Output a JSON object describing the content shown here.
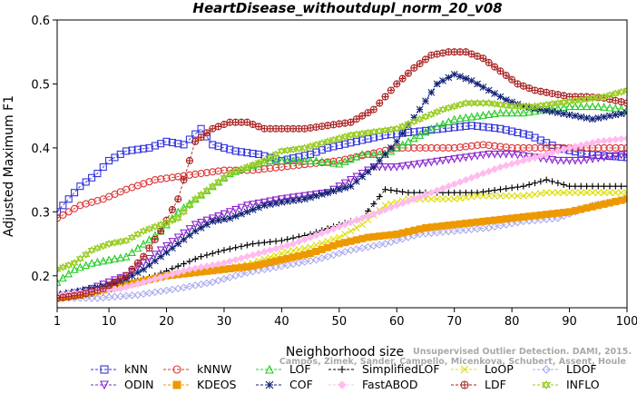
{
  "chart_data": {
    "type": "line",
    "title": "HeartDisease_withoutdupl_norm_20_v08",
    "xlabel": "Neighborhood size",
    "ylabel": "Adjusted Maximum F1",
    "xlim": [
      1,
      100
    ],
    "ylim": [
      0.15,
      0.6
    ],
    "xticks": [
      "1",
      "10",
      "20",
      "30",
      "40",
      "50",
      "60",
      "70",
      "80",
      "90",
      "100"
    ],
    "yticks": [
      "0.2",
      "0.3",
      "0.4",
      "0.5",
      "0.6"
    ],
    "credit": "Campos, Zimek, Sander, Campello, Micenkova, Schubert, Assent, Houle Unsupervised Outlier Detection. DAMI, 2015.",
    "credit_line1": "Unsupervised Outlier Detection. DAMI, 2015.",
    "credit_line2": "Campos, Zimek, Sander, Campello, Micenkova, Schubert, Assent, Houle",
    "legend_position": "bottom",
    "series": [
      {
        "name": "kNN",
        "color": "#3333dd",
        "marker": "square",
        "points": [
          [
            1,
            0.3
          ],
          [
            5,
            0.34
          ],
          [
            8,
            0.36
          ],
          [
            10,
            0.38
          ],
          [
            13,
            0.395
          ],
          [
            17,
            0.4
          ],
          [
            20,
            0.41
          ],
          [
            23,
            0.405
          ],
          [
            26,
            0.43
          ],
          [
            28,
            0.405
          ],
          [
            32,
            0.395
          ],
          [
            36,
            0.39
          ],
          [
            40,
            0.38
          ],
          [
            45,
            0.39
          ],
          [
            48,
            0.4
          ],
          [
            53,
            0.41
          ],
          [
            58,
            0.42
          ],
          [
            63,
            0.425
          ],
          [
            68,
            0.43
          ],
          [
            73,
            0.435
          ],
          [
            78,
            0.43
          ],
          [
            83,
            0.42
          ],
          [
            88,
            0.4
          ],
          [
            93,
            0.39
          ],
          [
            100,
            0.385
          ]
        ]
      },
      {
        "name": "kNNW",
        "color": "#dd3333",
        "marker": "circle",
        "points": [
          [
            1,
            0.29
          ],
          [
            5,
            0.31
          ],
          [
            9,
            0.32
          ],
          [
            13,
            0.335
          ],
          [
            18,
            0.35
          ],
          [
            22,
            0.355
          ],
          [
            26,
            0.36
          ],
          [
            30,
            0.365
          ],
          [
            35,
            0.365
          ],
          [
            40,
            0.37
          ],
          [
            45,
            0.375
          ],
          [
            50,
            0.38
          ],
          [
            55,
            0.39
          ],
          [
            60,
            0.4
          ],
          [
            65,
            0.4
          ],
          [
            70,
            0.4
          ],
          [
            75,
            0.405
          ],
          [
            80,
            0.4
          ],
          [
            85,
            0.4
          ],
          [
            90,
            0.4
          ],
          [
            100,
            0.4
          ]
        ]
      },
      {
        "name": "LOF",
        "color": "#22cc22",
        "marker": "triangle-up",
        "points": [
          [
            1,
            0.19
          ],
          [
            4,
            0.21
          ],
          [
            7,
            0.22
          ],
          [
            10,
            0.225
          ],
          [
            13,
            0.23
          ],
          [
            16,
            0.25
          ],
          [
            19,
            0.27
          ],
          [
            22,
            0.3
          ],
          [
            25,
            0.32
          ],
          [
            28,
            0.34
          ],
          [
            31,
            0.36
          ],
          [
            34,
            0.37
          ],
          [
            38,
            0.38
          ],
          [
            42,
            0.38
          ],
          [
            46,
            0.38
          ],
          [
            50,
            0.375
          ],
          [
            54,
            0.39
          ],
          [
            58,
            0.39
          ],
          [
            62,
            0.41
          ],
          [
            66,
            0.43
          ],
          [
            70,
            0.445
          ],
          [
            74,
            0.45
          ],
          [
            78,
            0.455
          ],
          [
            82,
            0.455
          ],
          [
            86,
            0.46
          ],
          [
            90,
            0.465
          ],
          [
            95,
            0.465
          ],
          [
            100,
            0.46
          ]
        ]
      },
      {
        "name": "SimplifiedLOF",
        "color": "#000000",
        "marker": "plus",
        "points": [
          [
            1,
            0.165
          ],
          [
            5,
            0.17
          ],
          [
            10,
            0.175
          ],
          [
            14,
            0.19
          ],
          [
            18,
            0.2
          ],
          [
            22,
            0.215
          ],
          [
            26,
            0.23
          ],
          [
            30,
            0.24
          ],
          [
            35,
            0.25
          ],
          [
            40,
            0.255
          ],
          [
            45,
            0.265
          ],
          [
            50,
            0.28
          ],
          [
            54,
            0.29
          ],
          [
            58,
            0.335
          ],
          [
            62,
            0.33
          ],
          [
            66,
            0.33
          ],
          [
            70,
            0.33
          ],
          [
            74,
            0.33
          ],
          [
            78,
            0.335
          ],
          [
            82,
            0.34
          ],
          [
            86,
            0.35
          ],
          [
            90,
            0.34
          ],
          [
            95,
            0.34
          ],
          [
            100,
            0.34
          ]
        ]
      },
      {
        "name": "LoOP",
        "color": "#dddd00",
        "marker": "cross",
        "points": [
          [
            1,
            0.165
          ],
          [
            6,
            0.17
          ],
          [
            10,
            0.18
          ],
          [
            15,
            0.19
          ],
          [
            20,
            0.2
          ],
          [
            25,
            0.205
          ],
          [
            30,
            0.21
          ],
          [
            35,
            0.22
          ],
          [
            40,
            0.235
          ],
          [
            45,
            0.245
          ],
          [
            50,
            0.26
          ],
          [
            54,
            0.28
          ],
          [
            58,
            0.31
          ],
          [
            62,
            0.32
          ],
          [
            66,
            0.32
          ],
          [
            70,
            0.32
          ],
          [
            74,
            0.325
          ],
          [
            78,
            0.325
          ],
          [
            82,
            0.325
          ],
          [
            86,
            0.33
          ],
          [
            90,
            0.33
          ],
          [
            95,
            0.33
          ],
          [
            100,
            0.33
          ]
        ]
      },
      {
        "name": "LDOF",
        "color": "#aaaaee",
        "marker": "diamond",
        "points": [
          [
            1,
            0.165
          ],
          [
            8,
            0.165
          ],
          [
            15,
            0.17
          ],
          [
            22,
            0.18
          ],
          [
            28,
            0.19
          ],
          [
            34,
            0.205
          ],
          [
            40,
            0.215
          ],
          [
            46,
            0.225
          ],
          [
            52,
            0.24
          ],
          [
            58,
            0.25
          ],
          [
            64,
            0.265
          ],
          [
            70,
            0.27
          ],
          [
            76,
            0.275
          ],
          [
            82,
            0.285
          ],
          [
            88,
            0.29
          ],
          [
            94,
            0.31
          ],
          [
            100,
            0.32
          ]
        ]
      },
      {
        "name": "ODIN",
        "color": "#8822cc",
        "marker": "triangle-down",
        "points": [
          [
            1,
            0.165
          ],
          [
            4,
            0.17
          ],
          [
            7,
            0.18
          ],
          [
            10,
            0.19
          ],
          [
            13,
            0.2
          ],
          [
            16,
            0.22
          ],
          [
            19,
            0.24
          ],
          [
            22,
            0.26
          ],
          [
            25,
            0.28
          ],
          [
            28,
            0.29
          ],
          [
            31,
            0.3
          ],
          [
            34,
            0.31
          ],
          [
            37,
            0.315
          ],
          [
            40,
            0.32
          ],
          [
            44,
            0.325
          ],
          [
            48,
            0.33
          ],
          [
            52,
            0.35
          ],
          [
            56,
            0.37
          ],
          [
            60,
            0.37
          ],
          [
            64,
            0.375
          ],
          [
            68,
            0.38
          ],
          [
            72,
            0.385
          ],
          [
            76,
            0.39
          ],
          [
            80,
            0.39
          ],
          [
            84,
            0.385
          ],
          [
            88,
            0.38
          ],
          [
            92,
            0.38
          ],
          [
            96,
            0.385
          ],
          [
            100,
            0.39
          ]
        ]
      },
      {
        "name": "KDEOS",
        "color": "#ee9900",
        "marker": "filled-square",
        "points": [
          [
            1,
            0.165
          ],
          [
            5,
            0.17
          ],
          [
            10,
            0.18
          ],
          [
            15,
            0.19
          ],
          [
            20,
            0.2
          ],
          [
            25,
            0.205
          ],
          [
            30,
            0.21
          ],
          [
            35,
            0.215
          ],
          [
            40,
            0.225
          ],
          [
            45,
            0.235
          ],
          [
            50,
            0.25
          ],
          [
            55,
            0.26
          ],
          [
            60,
            0.265
          ],
          [
            65,
            0.275
          ],
          [
            70,
            0.28
          ],
          [
            75,
            0.285
          ],
          [
            80,
            0.29
          ],
          [
            85,
            0.295
          ],
          [
            90,
            0.3
          ],
          [
            95,
            0.31
          ],
          [
            100,
            0.32
          ]
        ]
      },
      {
        "name": "COF",
        "color": "#112277",
        "marker": "asterisk",
        "points": [
          [
            1,
            0.17
          ],
          [
            4,
            0.175
          ],
          [
            7,
            0.18
          ],
          [
            10,
            0.185
          ],
          [
            13,
            0.195
          ],
          [
            16,
            0.21
          ],
          [
            19,
            0.23
          ],
          [
            22,
            0.25
          ],
          [
            25,
            0.27
          ],
          [
            28,
            0.285
          ],
          [
            31,
            0.29
          ],
          [
            34,
            0.3
          ],
          [
            37,
            0.31
          ],
          [
            40,
            0.315
          ],
          [
            44,
            0.32
          ],
          [
            48,
            0.33
          ],
          [
            52,
            0.34
          ],
          [
            56,
            0.37
          ],
          [
            60,
            0.41
          ],
          [
            64,
            0.46
          ],
          [
            67,
            0.5
          ],
          [
            70,
            0.515
          ],
          [
            73,
            0.505
          ],
          [
            76,
            0.49
          ],
          [
            79,
            0.475
          ],
          [
            82,
            0.465
          ],
          [
            85,
            0.46
          ],
          [
            88,
            0.455
          ],
          [
            91,
            0.45
          ],
          [
            94,
            0.445
          ],
          [
            97,
            0.45
          ],
          [
            100,
            0.455
          ]
        ]
      },
      {
        "name": "FastABOD",
        "color": "#ffbbee",
        "marker": "filled-diamond",
        "points": [
          [
            1,
            0.17
          ],
          [
            6,
            0.175
          ],
          [
            12,
            0.18
          ],
          [
            18,
            0.195
          ],
          [
            24,
            0.21
          ],
          [
            30,
            0.22
          ],
          [
            36,
            0.235
          ],
          [
            42,
            0.25
          ],
          [
            48,
            0.27
          ],
          [
            54,
            0.29
          ],
          [
            60,
            0.31
          ],
          [
            66,
            0.33
          ],
          [
            72,
            0.35
          ],
          [
            78,
            0.37
          ],
          [
            84,
            0.385
          ],
          [
            90,
            0.4
          ],
          [
            95,
            0.41
          ],
          [
            100,
            0.415
          ]
        ]
      },
      {
        "name": "LDF",
        "color": "#aa2222",
        "marker": "circle-plus",
        "points": [
          [
            1,
            0.165
          ],
          [
            5,
            0.17
          ],
          [
            9,
            0.18
          ],
          [
            13,
            0.2
          ],
          [
            16,
            0.23
          ],
          [
            19,
            0.27
          ],
          [
            22,
            0.32
          ],
          [
            25,
            0.41
          ],
          [
            28,
            0.43
          ],
          [
            31,
            0.44
          ],
          [
            34,
            0.44
          ],
          [
            37,
            0.43
          ],
          [
            40,
            0.43
          ],
          [
            44,
            0.43
          ],
          [
            48,
            0.435
          ],
          [
            52,
            0.44
          ],
          [
            56,
            0.46
          ],
          [
            60,
            0.5
          ],
          [
            63,
            0.525
          ],
          [
            66,
            0.545
          ],
          [
            69,
            0.55
          ],
          [
            72,
            0.55
          ],
          [
            75,
            0.54
          ],
          [
            78,
            0.52
          ],
          [
            81,
            0.5
          ],
          [
            84,
            0.49
          ],
          [
            87,
            0.485
          ],
          [
            90,
            0.48
          ],
          [
            93,
            0.48
          ],
          [
            96,
            0.478
          ],
          [
            100,
            0.47
          ]
        ]
      },
      {
        "name": "INFLO",
        "color": "#99cc22",
        "marker": "star",
        "points": [
          [
            1,
            0.21
          ],
          [
            4,
            0.22
          ],
          [
            7,
            0.24
          ],
          [
            10,
            0.25
          ],
          [
            13,
            0.255
          ],
          [
            16,
            0.27
          ],
          [
            19,
            0.28
          ],
          [
            22,
            0.29
          ],
          [
            25,
            0.32
          ],
          [
            28,
            0.34
          ],
          [
            31,
            0.36
          ],
          [
            34,
            0.37
          ],
          [
            37,
            0.38
          ],
          [
            40,
            0.395
          ],
          [
            44,
            0.4
          ],
          [
            48,
            0.41
          ],
          [
            52,
            0.42
          ],
          [
            56,
            0.425
          ],
          [
            60,
            0.43
          ],
          [
            64,
            0.445
          ],
          [
            68,
            0.46
          ],
          [
            72,
            0.47
          ],
          [
            76,
            0.47
          ],
          [
            80,
            0.465
          ],
          [
            84,
            0.465
          ],
          [
            88,
            0.47
          ],
          [
            92,
            0.475
          ],
          [
            96,
            0.48
          ],
          [
            100,
            0.49
          ]
        ]
      }
    ]
  }
}
